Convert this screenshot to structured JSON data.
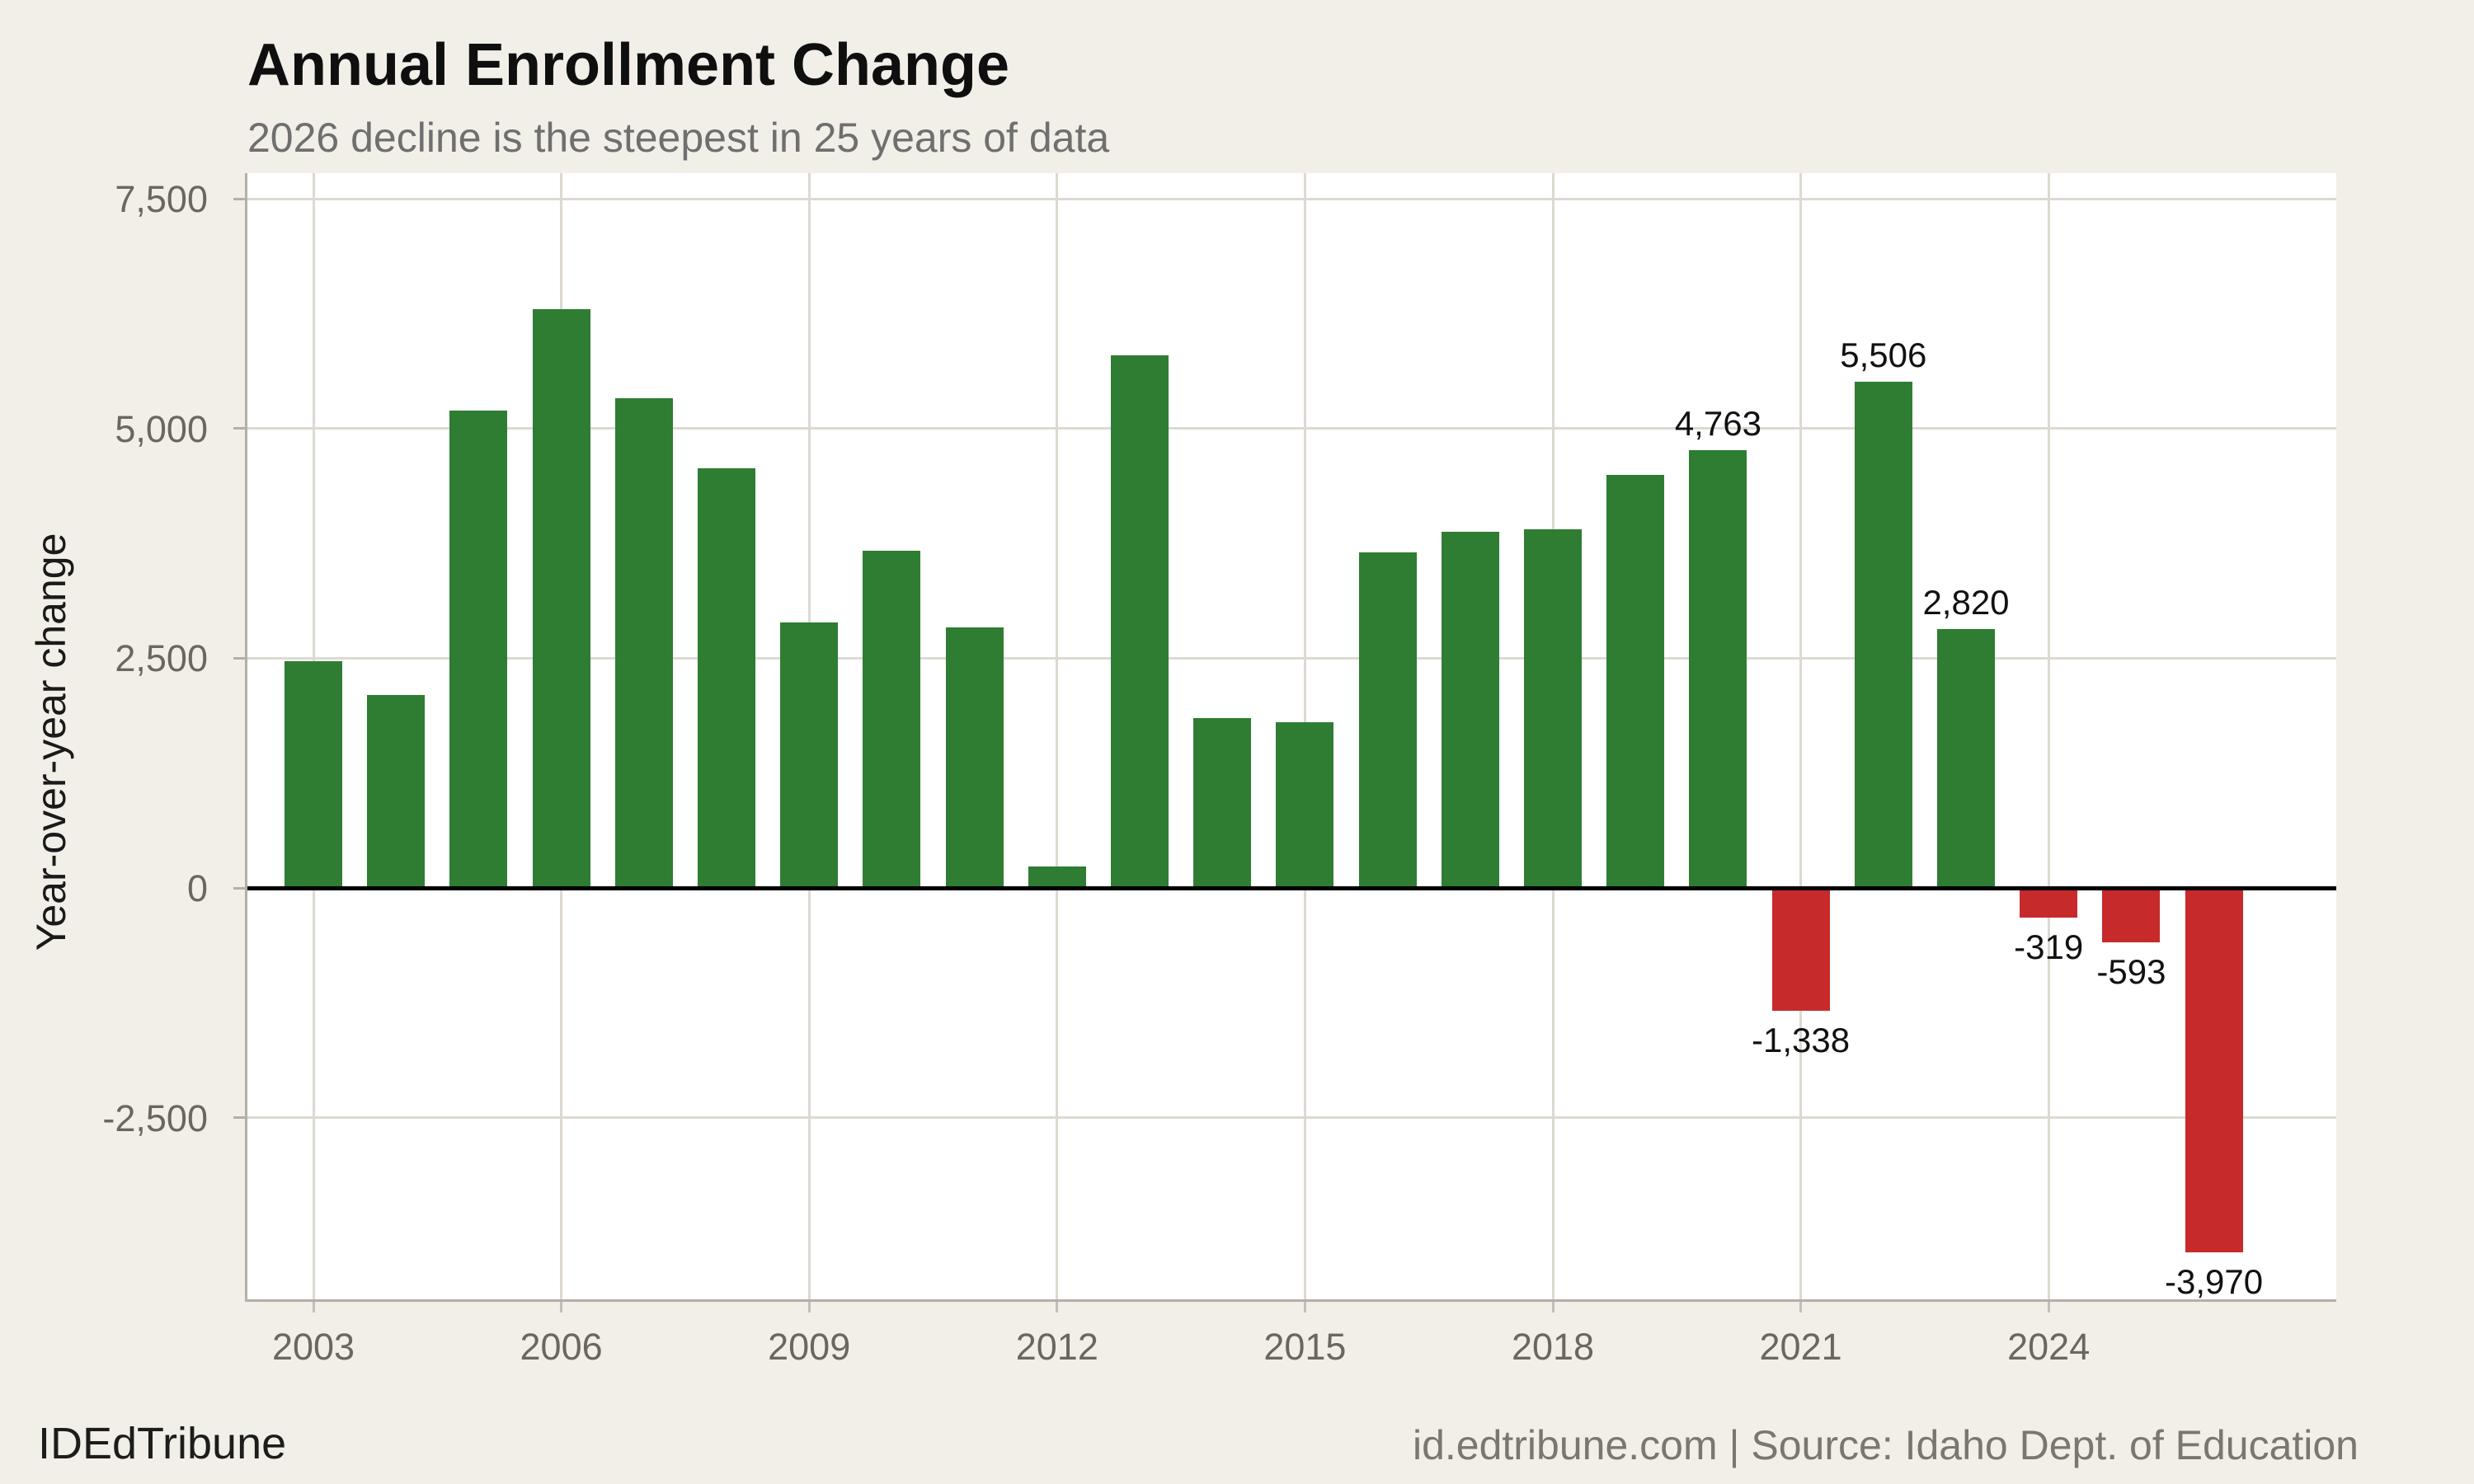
{
  "header": {
    "title": "Annual Enrollment Change",
    "subtitle": "2026 decline is the steepest in 25 years of data"
  },
  "y_axis": {
    "label": "Year-over-year change",
    "ticks": [
      {
        "value": 7500,
        "label": "7,500"
      },
      {
        "value": 5000,
        "label": "5,000"
      },
      {
        "value": 2500,
        "label": "2,500"
      },
      {
        "value": 0,
        "label": "0"
      },
      {
        "value": -2500,
        "label": "-2,500"
      }
    ]
  },
  "x_axis": {
    "ticks": [
      {
        "year": 2003,
        "label": "2003"
      },
      {
        "year": 2006,
        "label": "2006"
      },
      {
        "year": 2009,
        "label": "2009"
      },
      {
        "year": 2012,
        "label": "2012"
      },
      {
        "year": 2015,
        "label": "2015"
      },
      {
        "year": 2018,
        "label": "2018"
      },
      {
        "year": 2021,
        "label": "2021"
      },
      {
        "year": 2024,
        "label": "2024"
      }
    ]
  },
  "footer": {
    "brand": "IDEdTribune",
    "source": "id.edtribune.com | Source: Idaho Dept. of Education"
  },
  "colors": {
    "background": "#f2efe8",
    "plot_background": "#ffffff",
    "gridline": "#ddd9d2",
    "spine": "#b4afa8",
    "axis_tick": "#c3beb7",
    "zero_line": "#000000",
    "positive_bar": "#2e7d32",
    "negative_bar": "#c62a2a"
  },
  "chart_data": {
    "type": "bar",
    "title": "Annual Enrollment Change",
    "subtitle": "2026 decline is the steepest in 25 years of data",
    "xlabel": "",
    "ylabel": "Year-over-year change",
    "ylim": [
      -4480,
      7740
    ],
    "grid": true,
    "y_gridlines": [
      7500,
      5000,
      2500,
      0,
      -2500
    ],
    "x_gridline_years": [
      2003,
      2006,
      2009,
      2012,
      2015,
      2018,
      2021,
      2024
    ],
    "series": [
      {
        "year": 2003,
        "value": 2470,
        "label": null
      },
      {
        "year": 2004,
        "value": 2100,
        "label": null
      },
      {
        "year": 2005,
        "value": 5200,
        "label": null
      },
      {
        "year": 2006,
        "value": 6300,
        "label": null
      },
      {
        "year": 2007,
        "value": 5330,
        "label": null
      },
      {
        "year": 2008,
        "value": 4570,
        "label": null
      },
      {
        "year": 2009,
        "value": 2890,
        "label": null
      },
      {
        "year": 2010,
        "value": 3670,
        "label": null
      },
      {
        "year": 2011,
        "value": 2840,
        "label": null
      },
      {
        "year": 2012,
        "value": 230,
        "label": null
      },
      {
        "year": 2013,
        "value": 5800,
        "label": null
      },
      {
        "year": 2014,
        "value": 1850,
        "label": null
      },
      {
        "year": 2015,
        "value": 1800,
        "label": null
      },
      {
        "year": 2016,
        "value": 3650,
        "label": null
      },
      {
        "year": 2017,
        "value": 3880,
        "label": null
      },
      {
        "year": 2018,
        "value": 3900,
        "label": null
      },
      {
        "year": 2019,
        "value": 4500,
        "label": null
      },
      {
        "year": 2020,
        "value": 4763,
        "label": "4,763"
      },
      {
        "year": 2021,
        "value": -1338,
        "label": "-1,338"
      },
      {
        "year": 2022,
        "value": 5506,
        "label": "5,506"
      },
      {
        "year": 2023,
        "value": 2820,
        "label": "2,820"
      },
      {
        "year": 2024,
        "value": -319,
        "label": "-319"
      },
      {
        "year": 2025,
        "value": -593,
        "label": "-593"
      },
      {
        "year": 2026,
        "value": -3970,
        "label": "-3,970"
      }
    ]
  }
}
